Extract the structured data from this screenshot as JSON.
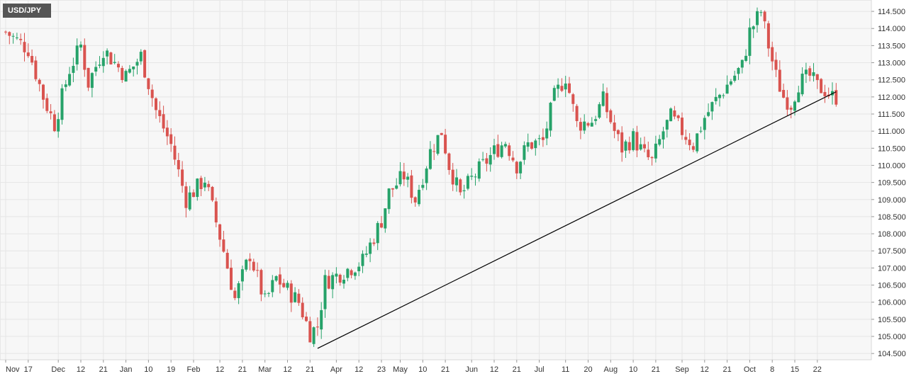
{
  "symbol": "USD/JPY",
  "colors": {
    "up": "#26a269",
    "down": "#d9534f",
    "trendline": "#000000",
    "grid": "#e6e6e6",
    "plot_bg": "#f7f7f7"
  },
  "chart_data": {
    "type": "candlestick",
    "title": "USD/JPY",
    "y_ticks": [
      "104.500",
      "105.000",
      "105.500",
      "106.000",
      "106.500",
      "107.000",
      "107.500",
      "108.000",
      "108.500",
      "109.000",
      "109.500",
      "110.000",
      "110.500",
      "111.000",
      "111.500",
      "112.000",
      "112.500",
      "113.000",
      "113.500",
      "114.000",
      "114.500"
    ],
    "ylim": [
      104.4,
      114.75
    ],
    "x_tick_labels": [
      "Nov",
      "17",
      "Dec",
      "12",
      "21",
      "Jan",
      "10",
      "19",
      "Feb",
      "12",
      "21",
      "Mar",
      "12",
      "21",
      "Apr",
      "12",
      "23",
      "May",
      "10",
      "21",
      "Jun",
      "12",
      "21",
      "Jul",
      "11",
      "20",
      "Aug",
      "10",
      "21",
      "Sep",
      "12",
      "21",
      "Oct",
      "8",
      "15",
      "22"
    ],
    "x_tick_positions": [
      0,
      6,
      14,
      20,
      26,
      32,
      38,
      44,
      50,
      57,
      63,
      69,
      75,
      81,
      88,
      94,
      100,
      105,
      111,
      117,
      124,
      130,
      136,
      142,
      149,
      155,
      161,
      167,
      173,
      180,
      186,
      192,
      198,
      204,
      210,
      216
    ],
    "bar_count": 222,
    "close_path": [
      [
        0,
        113.9
      ],
      [
        6,
        113.4
      ],
      [
        10,
        112.0
      ],
      [
        13,
        111.2
      ],
      [
        17,
        112.8
      ],
      [
        20,
        113.5
      ],
      [
        22,
        112.4
      ],
      [
        26,
        113.4
      ],
      [
        32,
        112.6
      ],
      [
        36,
        113.2
      ],
      [
        40,
        111.6
      ],
      [
        44,
        110.6
      ],
      [
        48,
        109.0
      ],
      [
        53,
        109.6
      ],
      [
        58,
        107.5
      ],
      [
        61,
        106.1
      ],
      [
        65,
        107.4
      ],
      [
        69,
        106.0
      ],
      [
        72,
        106.7
      ],
      [
        78,
        106.0
      ],
      [
        81,
        105.1
      ],
      [
        83,
        105.3
      ],
      [
        85,
        106.6
      ],
      [
        90,
        106.9
      ],
      [
        95,
        107.2
      ],
      [
        100,
        108.4
      ],
      [
        102,
        109.2
      ],
      [
        106,
        109.7
      ],
      [
        109,
        109.0
      ],
      [
        113,
        110.4
      ],
      [
        116,
        111.0
      ],
      [
        118,
        110.0
      ],
      [
        121,
        109.1
      ],
      [
        124,
        109.6
      ],
      [
        130,
        110.4
      ],
      [
        133,
        110.7
      ],
      [
        136,
        110.0
      ],
      [
        139,
        110.6
      ],
      [
        143,
        110.7
      ],
      [
        146,
        112.0
      ],
      [
        149,
        112.6
      ],
      [
        152,
        111.2
      ],
      [
        156,
        111.3
      ],
      [
        159,
        111.9
      ],
      [
        162,
        111.0
      ],
      [
        164,
        110.5
      ],
      [
        167,
        110.8
      ],
      [
        170,
        110.3
      ],
      [
        172,
        110.1
      ],
      [
        175,
        111.0
      ],
      [
        177,
        111.4
      ],
      [
        180,
        111.0
      ],
      [
        183,
        110.6
      ],
      [
        186,
        111.4
      ],
      [
        189,
        111.9
      ],
      [
        193,
        112.5
      ],
      [
        196,
        112.9
      ],
      [
        198,
        113.9
      ],
      [
        200,
        114.3
      ],
      [
        201,
        114.5
      ],
      [
        203,
        113.5
      ],
      [
        205,
        112.6
      ],
      [
        207,
        112.0
      ],
      [
        209,
        111.8
      ],
      [
        211,
        112.4
      ],
      [
        214,
        112.6
      ],
      [
        216,
        112.3
      ],
      [
        218,
        112.2
      ],
      [
        220,
        112.0
      ]
    ],
    "trendline": {
      "from": [
        83,
        104.65
      ],
      "to": [
        221,
        112.15
      ]
    }
  }
}
